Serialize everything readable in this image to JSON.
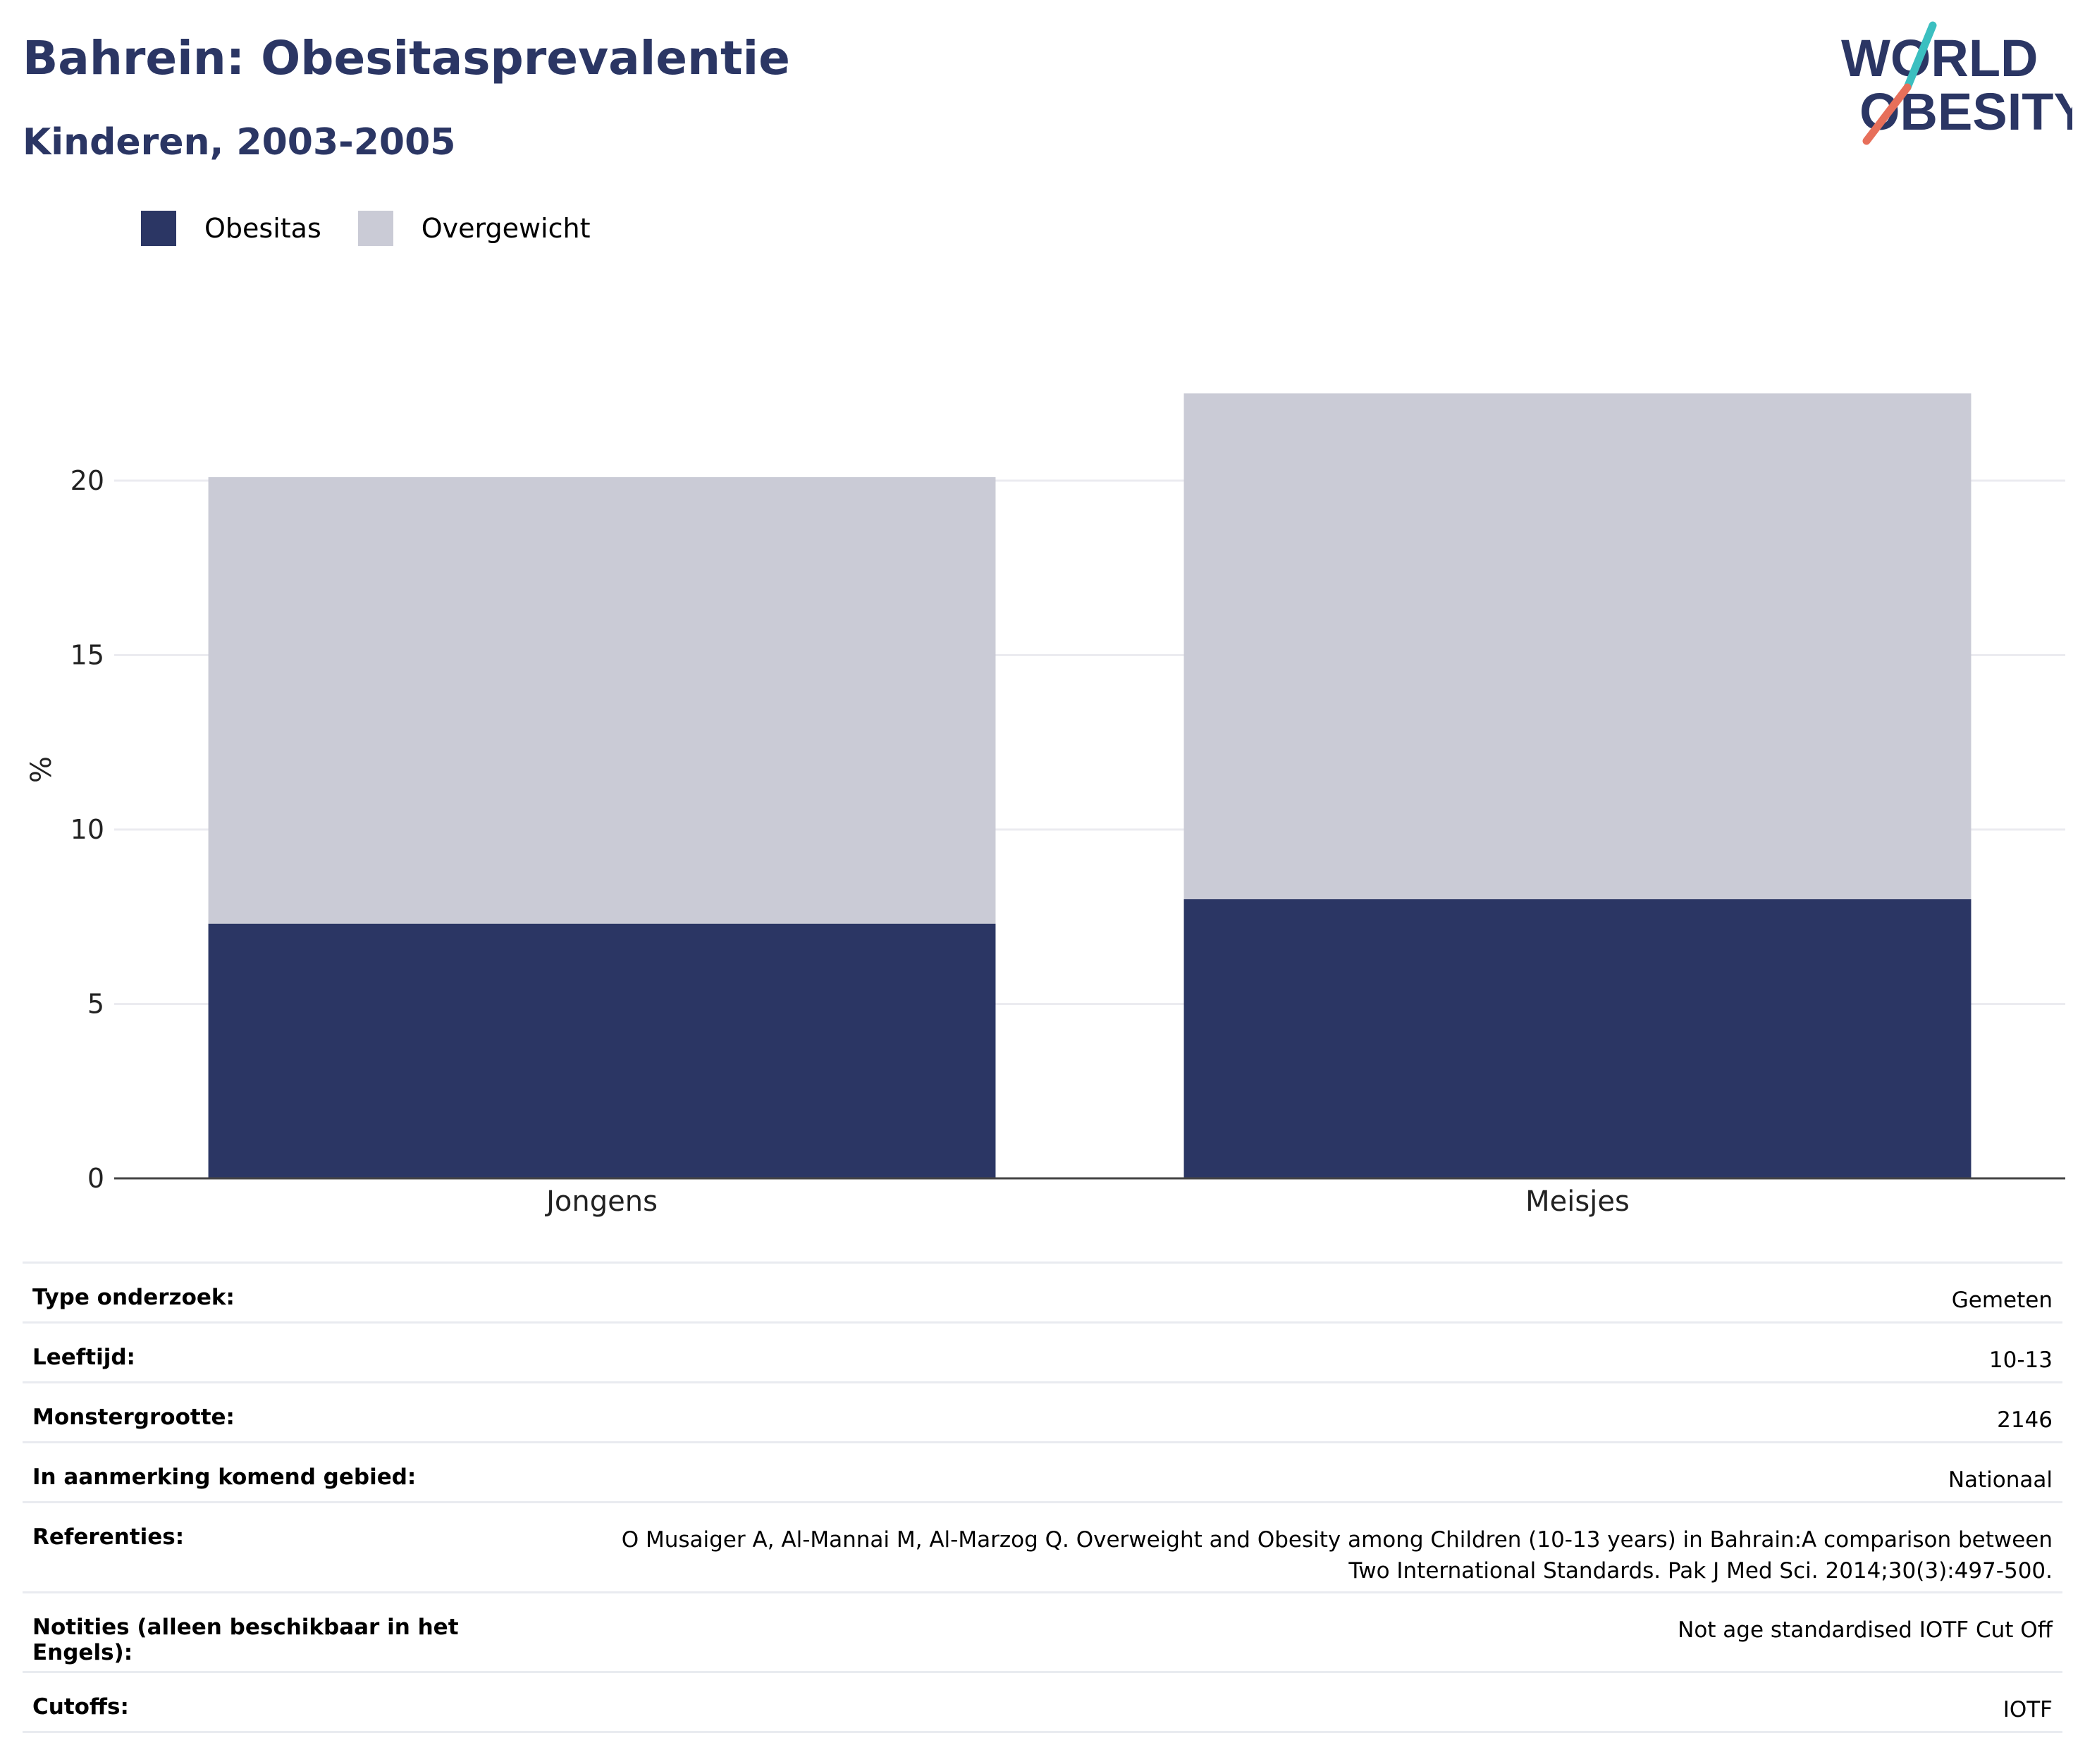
{
  "header": {
    "title": "Bahrein: Obesitasprevalentie",
    "subtitle": "Kinderen, 2003-2005"
  },
  "logo": {
    "line1": "WORLD",
    "line2": "OBESITY"
  },
  "colors": {
    "obesity": "#2b3664",
    "overweight": "#cacbd6",
    "title": "#2b3664",
    "grid": "#ebebf0"
  },
  "legend": [
    {
      "label": "Obesitas",
      "color": "#2b3664"
    },
    {
      "label": "Overgewicht",
      "color": "#cacbd6"
    }
  ],
  "chart_data": {
    "type": "bar",
    "stacked": true,
    "categories": [
      "Jongens",
      "Meisjes"
    ],
    "series": [
      {
        "name": "Obesitas",
        "values": [
          7.3,
          8.0
        ]
      },
      {
        "name": "Overgewicht",
        "values": [
          12.8,
          14.5
        ]
      }
    ],
    "ylabel": "%",
    "ylim": [
      0,
      23
    ],
    "yticks": [
      0,
      5,
      10,
      15,
      20
    ],
    "grid": true,
    "legend_position": "top-left"
  },
  "info": [
    {
      "label": "Type onderzoek:",
      "value": "Gemeten"
    },
    {
      "label": "Leeftijd:",
      "value": "10-13"
    },
    {
      "label": "Monstergrootte:",
      "value": "2146"
    },
    {
      "label": "In aanmerking komend gebied:",
      "value": "Nationaal"
    },
    {
      "label": "Referenties:",
      "value_lines": [
        "O Musaiger A, Al-Mannai M, Al-Marzog Q. Overweight and Obesity among Children (10-13 years) in Bahrain:A comparison between",
        "Two International Standards. Pak J Med Sci. 2014;30(3):497-500."
      ]
    },
    {
      "label": "Notities (alleen beschikbaar in het Engels):",
      "value": "Not age standardised IOTF Cut Off"
    },
    {
      "label": "Cutoffs:",
      "value": "IOTF"
    }
  ]
}
